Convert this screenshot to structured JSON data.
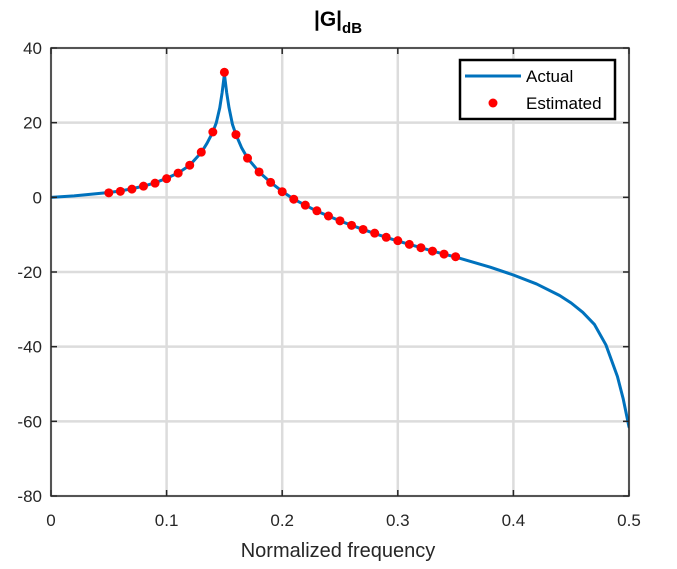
{
  "chart_data": {
    "type": "line",
    "title": "|G|",
    "title_subscript": "dB",
    "xlabel": "Normalized frequency",
    "ylabel": "",
    "xlim": [
      0,
      0.5
    ],
    "ylim": [
      -80,
      40
    ],
    "x_ticks": [
      0,
      0.1,
      0.2,
      0.3,
      0.4,
      0.5
    ],
    "x_tick_labels": [
      "0",
      "0.1",
      "0.2",
      "0.3",
      "0.4",
      "0.5"
    ],
    "y_ticks": [
      -80,
      -60,
      -40,
      -20,
      0,
      20,
      40
    ],
    "y_tick_labels": [
      "-80",
      "-60",
      "-40",
      "-20",
      "0",
      "20",
      "40"
    ],
    "grid": true,
    "legend_position": "top-right",
    "series": [
      {
        "name": "Actual",
        "style": "line",
        "color": "#0072BD",
        "x": [
          0,
          0.02,
          0.04,
          0.05,
          0.06,
          0.07,
          0.08,
          0.09,
          0.1,
          0.11,
          0.12,
          0.13,
          0.135,
          0.14,
          0.143,
          0.146,
          0.148,
          0.15,
          0.152,
          0.154,
          0.157,
          0.16,
          0.165,
          0.17,
          0.18,
          0.19,
          0.2,
          0.21,
          0.22,
          0.23,
          0.24,
          0.25,
          0.26,
          0.27,
          0.28,
          0.29,
          0.3,
          0.31,
          0.32,
          0.33,
          0.34,
          0.35,
          0.36,
          0.38,
          0.4,
          0.42,
          0.44,
          0.45,
          0.46,
          0.47,
          0.48,
          0.49,
          0.495,
          0.5
        ],
        "y": [
          0,
          0.4,
          1.0,
          1.3,
          1.7,
          2.3,
          3.0,
          3.9,
          5.1,
          6.5,
          8.6,
          12.0,
          14.5,
          17.5,
          20.0,
          24.0,
          28.0,
          33.0,
          28.0,
          24.0,
          19.5,
          16.8,
          13.2,
          10.5,
          6.8,
          4.0,
          1.6,
          -0.5,
          -2.1,
          -3.7,
          -5.0,
          -6.3,
          -7.5,
          -8.6,
          -9.7,
          -10.7,
          -11.7,
          -12.6,
          -13.5,
          -14.4,
          -15.2,
          -16.0,
          -16.9,
          -18.7,
          -20.8,
          -23.2,
          -26.3,
          -28.3,
          -30.8,
          -34.0,
          -39.5,
          -48.0,
          -54.0,
          -61.5
        ]
      },
      {
        "name": "Estimated",
        "style": "markers",
        "color": "#FF0000",
        "x": [
          0.05,
          0.06,
          0.07,
          0.08,
          0.09,
          0.1,
          0.11,
          0.12,
          0.13,
          0.14,
          0.15,
          0.16,
          0.17,
          0.18,
          0.19,
          0.2,
          0.21,
          0.22,
          0.23,
          0.24,
          0.25,
          0.26,
          0.27,
          0.28,
          0.29,
          0.3,
          0.31,
          0.32,
          0.33,
          0.34,
          0.35
        ],
        "y": [
          1.2,
          1.6,
          2.2,
          3.0,
          3.8,
          5.0,
          6.5,
          8.6,
          12.1,
          17.5,
          33.5,
          16.8,
          10.5,
          6.8,
          4.0,
          1.5,
          -0.5,
          -2.1,
          -3.6,
          -5.0,
          -6.3,
          -7.5,
          -8.6,
          -9.6,
          -10.7,
          -11.6,
          -12.6,
          -13.5,
          -14.4,
          -15.2,
          -15.9
        ]
      }
    ]
  }
}
